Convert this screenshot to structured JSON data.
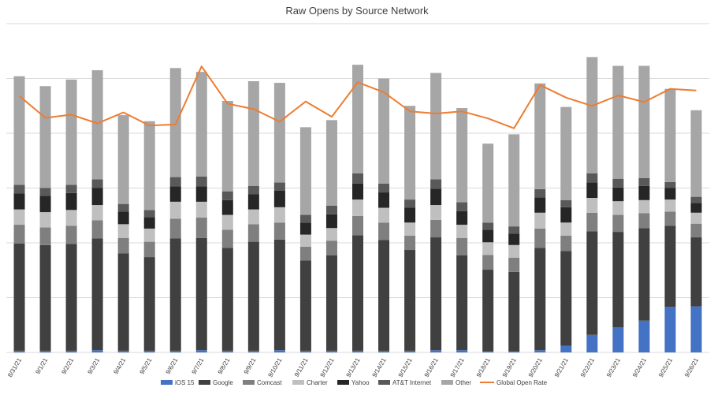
{
  "chart_data": {
    "type": "bar",
    "subtype": "stacked-bar-with-line",
    "title": "Raw Opens by Source Network",
    "xlabel": "",
    "ylabel": "",
    "ylim": [
      0,
      60000
    ],
    "grid": true,
    "legend_position": "bottom",
    "categories": [
      "8/31/21",
      "9/1/21",
      "9/2/21",
      "9/3/21",
      "9/4/21",
      "9/5/21",
      "9/6/21",
      "9/7/21",
      "9/8/21",
      "9/9/21",
      "9/10/21",
      "9/11/21",
      "9/12/21",
      "9/13/21",
      "9/14/21",
      "9/15/21",
      "9/16/21",
      "9/17/21",
      "9/18/21",
      "9/19/21",
      "9/20/21",
      "9/21/21",
      "9/22/21",
      "9/23/21",
      "9/24/21",
      "9/25/21",
      "9/26/21"
    ],
    "series": [
      {
        "name": "iOS 15",
        "color": "#4472C4",
        "values": [
          300,
          300,
          300,
          400,
          300,
          300,
          300,
          400,
          300,
          300,
          400,
          300,
          300,
          300,
          300,
          300,
          400,
          400,
          200,
          200,
          400,
          1200,
          3200,
          4600,
          5800,
          8300,
          8400
        ]
      },
      {
        "name": "Google",
        "color": "#404040",
        "values": [
          19600,
          19300,
          19500,
          20400,
          17800,
          17100,
          20500,
          20500,
          18800,
          19900,
          20200,
          16500,
          17400,
          21100,
          20200,
          18400,
          20600,
          17300,
          14900,
          14500,
          18700,
          17300,
          18900,
          17400,
          16900,
          14800,
          12600
        ]
      },
      {
        "name": "Comcast",
        "color": "#7F7F7F",
        "values": [
          3400,
          3200,
          3300,
          3300,
          2800,
          2800,
          3600,
          3700,
          3300,
          3200,
          3100,
          2500,
          2700,
          3500,
          3200,
          2600,
          3200,
          3200,
          2700,
          2600,
          3500,
          2800,
          3400,
          3100,
          2700,
          2600,
          2500
        ]
      },
      {
        "name": "Charter",
        "color": "#BFBFBF",
        "values": [
          2800,
          2800,
          2900,
          2800,
          2500,
          2400,
          3100,
          2900,
          2700,
          2700,
          2800,
          2200,
          2300,
          3000,
          2700,
          2400,
          2700,
          2400,
          2300,
          2300,
          2900,
          2400,
          2700,
          2500,
          2400,
          2200,
          2000
        ]
      },
      {
        "name": "Yahoo",
        "color": "#262626",
        "values": [
          2900,
          3000,
          3100,
          3100,
          2300,
          2100,
          2800,
          2800,
          2700,
          2800,
          3000,
          2200,
          2500,
          2900,
          2800,
          2700,
          3000,
          2500,
          2300,
          2100,
          2800,
          2800,
          2800,
          2500,
          2600,
          2100,
          1800
        ]
      },
      {
        "name": "AT&T Internet",
        "color": "#595959",
        "values": [
          1600,
          1400,
          1500,
          1600,
          1400,
          1300,
          1700,
          1800,
          1600,
          1500,
          1500,
          1400,
          1600,
          1900,
          1600,
          1500,
          1700,
          1600,
          1300,
          1300,
          1500,
          1300,
          1700,
          1600,
          1400,
          1100,
          1100
        ]
      },
      {
        "name": "Other",
        "color": "#A6A6A6",
        "values": [
          19800,
          18600,
          19200,
          19900,
          16200,
          16200,
          19900,
          19100,
          16500,
          19100,
          18200,
          16000,
          15600,
          19800,
          19200,
          17100,
          19400,
          17200,
          14400,
          16800,
          19300,
          17000,
          21200,
          20600,
          20500,
          17000,
          15800
        ]
      }
    ],
    "line_series": {
      "name": "Global Open Rate",
      "color": "#ED7D31",
      "values": [
        0.468,
        0.428,
        0.434,
        0.418,
        0.438,
        0.414,
        0.416,
        0.522,
        0.454,
        0.444,
        0.421,
        0.458,
        0.43,
        0.493,
        0.475,
        0.44,
        0.436,
        0.44,
        0.427,
        0.409,
        0.488,
        0.465,
        0.45,
        0.469,
        0.457,
        0.481,
        0.478
      ]
    }
  }
}
